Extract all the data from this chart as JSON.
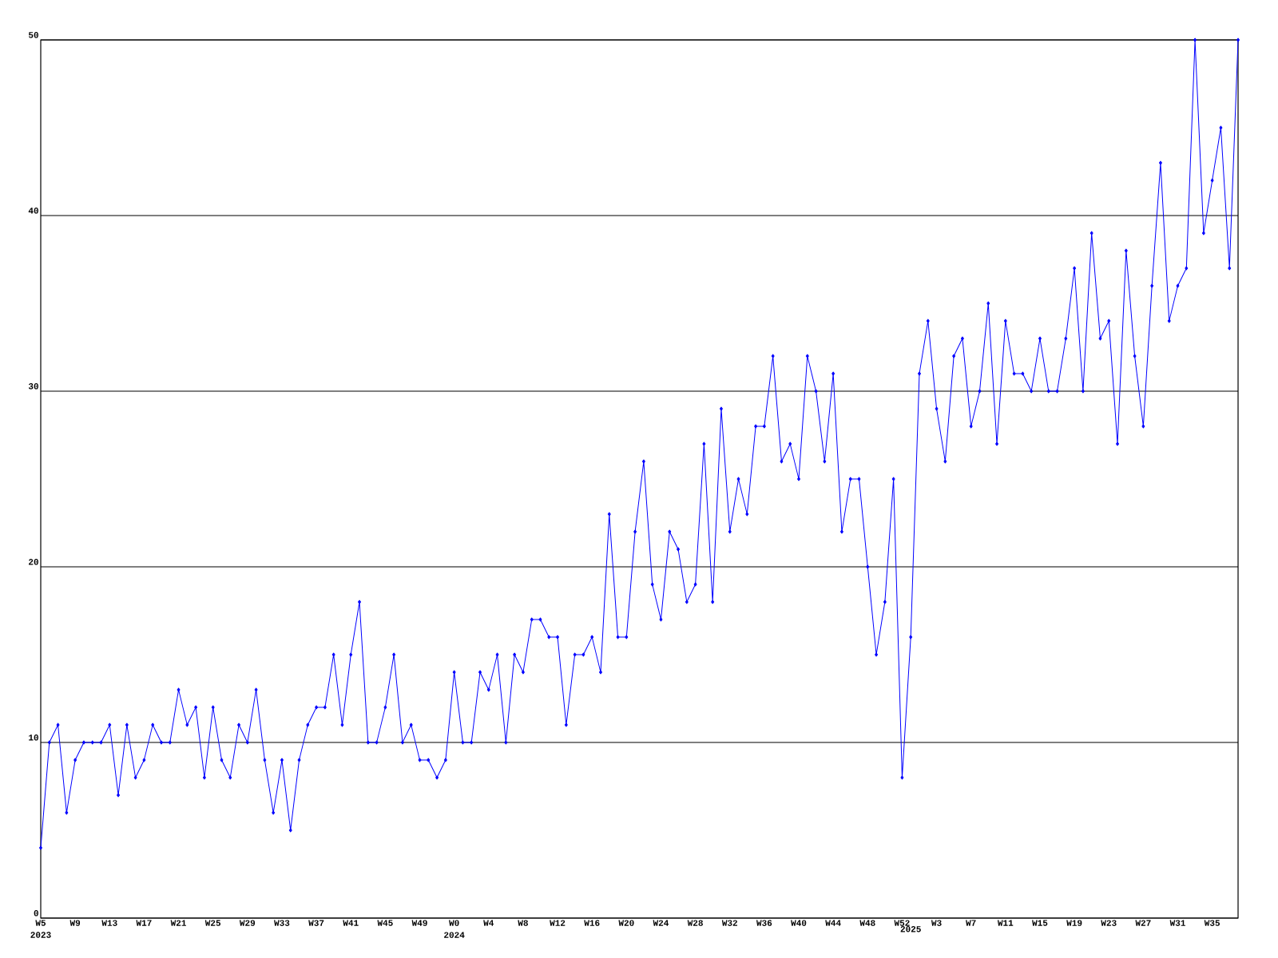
{
  "chart_data": {
    "type": "line",
    "categories": [
      "W5 2023",
      null,
      null,
      null,
      "W9",
      null,
      null,
      null,
      "W13",
      null,
      null,
      null,
      "W17",
      null,
      null,
      null,
      "W21",
      null,
      null,
      null,
      "W25",
      null,
      null,
      null,
      "W29",
      null,
      null,
      null,
      "W33",
      null,
      null,
      null,
      "W37",
      null,
      null,
      null,
      "W41",
      null,
      null,
      null,
      "W45",
      null,
      null,
      null,
      "W49",
      null,
      null,
      null,
      "W0 2024",
      null,
      null,
      null,
      "W4",
      null,
      null,
      null,
      "W8",
      null,
      null,
      null,
      "W12",
      null,
      null,
      null,
      "W16",
      null,
      null,
      null,
      "W20",
      null,
      null,
      null,
      "W24",
      null,
      null,
      null,
      "W28",
      null,
      null,
      null,
      "W32",
      null,
      null,
      null,
      "W36",
      null,
      null,
      null,
      "W40",
      null,
      null,
      null,
      "W44",
      null,
      null,
      null,
      "W48",
      null,
      null,
      null,
      "W52",
      "2025",
      null,
      null,
      "W3",
      null,
      null,
      null,
      "W7",
      null,
      null,
      null,
      "W11",
      null,
      null,
      null,
      "W15",
      null,
      null,
      null,
      "W19",
      null,
      null,
      null,
      "W23",
      null,
      null,
      null,
      "W27",
      null,
      null,
      null,
      "W31",
      null,
      null,
      null,
      "W35",
      null,
      null,
      null
    ],
    "series": [
      {
        "color": "#0000ff",
        "values": [
          4,
          10,
          11,
          6,
          9,
          10,
          10,
          10,
          11,
          7,
          11,
          8,
          9,
          11,
          10,
          10,
          13,
          11,
          12,
          8,
          12,
          9,
          8,
          11,
          10,
          13,
          9,
          6,
          9,
          5,
          9,
          11,
          12,
          12,
          15,
          11,
          15,
          18,
          10,
          10,
          12,
          15,
          10,
          11,
          9,
          9,
          8,
          9,
          14,
          10,
          10,
          14,
          13,
          15,
          10,
          15,
          14,
          17,
          17,
          16,
          16,
          11,
          15,
          15,
          16,
          14,
          23,
          16,
          16,
          22,
          26,
          19,
          17,
          22,
          21,
          18,
          19,
          27,
          18,
          29,
          22,
          25,
          23,
          28,
          28,
          32,
          26,
          27,
          25,
          32,
          30,
          26,
          31,
          22,
          25,
          25,
          20,
          15,
          18,
          25,
          8,
          16,
          31,
          34,
          29,
          26,
          32,
          33,
          28,
          30,
          35,
          27,
          34,
          31,
          31,
          30,
          33,
          30,
          30,
          33,
          37,
          30,
          39,
          33,
          34,
          27,
          38,
          32,
          28,
          36,
          43,
          34,
          36,
          37,
          50,
          39,
          42,
          45,
          37,
          50
        ]
      }
    ],
    "ylim": [
      0,
      50
    ],
    "yticks": [
      0,
      10,
      20,
      30,
      40,
      50
    ],
    "grid": "y",
    "marker": "diamond",
    "line_style": "solid"
  }
}
